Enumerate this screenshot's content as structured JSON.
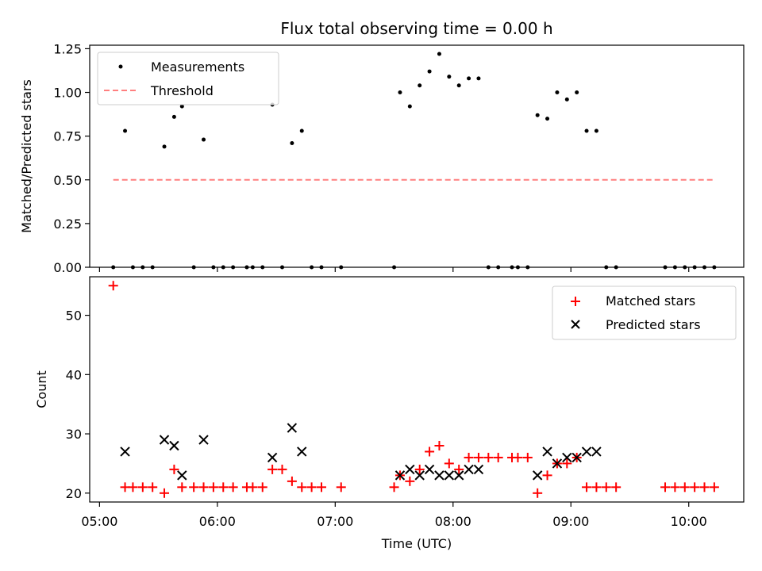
{
  "chart_data": [
    {
      "type": "scatter",
      "title": "Flux total observing time = 0.00 h",
      "ylabel": "Matched/Predicted stars",
      "xlabel": "",
      "xlim": [
        "04:55",
        "10:28"
      ],
      "ylim": [
        0,
        1.27
      ],
      "yticks": [
        "0.00",
        "0.25",
        "0.50",
        "0.75",
        "1.00",
        "1.25"
      ],
      "ytick_values": [
        0,
        0.25,
        0.5,
        0.75,
        1.0,
        1.25
      ],
      "legend_position": "top-left",
      "series": [
        {
          "name": "Measurements",
          "color": "#000000",
          "marker": "dot",
          "points": [
            [
              "05:07",
              0
            ],
            [
              "05:13",
              0.78
            ],
            [
              "05:17",
              0
            ],
            [
              "05:22",
              0
            ],
            [
              "05:27",
              0
            ],
            [
              "05:33",
              0.69
            ],
            [
              "05:38",
              0.86
            ],
            [
              "05:42",
              0.92
            ],
            [
              "05:48",
              0
            ],
            [
              "05:53",
              0.73
            ],
            [
              "05:58",
              0
            ],
            [
              "06:03",
              0
            ],
            [
              "06:08",
              0
            ],
            [
              "06:15",
              0
            ],
            [
              "06:18",
              0
            ],
            [
              "06:23",
              0
            ],
            [
              "06:28",
              0.93
            ],
            [
              "06:33",
              0
            ],
            [
              "06:38",
              0.71
            ],
            [
              "06:43",
              0.78
            ],
            [
              "06:48",
              0
            ],
            [
              "06:53",
              0
            ],
            [
              "07:03",
              0
            ],
            [
              "07:30",
              0
            ],
            [
              "07:33",
              1.0
            ],
            [
              "07:38",
              0.92
            ],
            [
              "07:43",
              1.04
            ],
            [
              "07:48",
              1.12
            ],
            [
              "07:53",
              1.22
            ],
            [
              "07:58",
              1.09
            ],
            [
              "08:03",
              1.04
            ],
            [
              "08:08",
              1.08
            ],
            [
              "08:13",
              1.08
            ],
            [
              "08:18",
              0
            ],
            [
              "08:23",
              0
            ],
            [
              "08:30",
              0
            ],
            [
              "08:33",
              0
            ],
            [
              "08:38",
              0
            ],
            [
              "08:43",
              0.87
            ],
            [
              "08:48",
              0.85
            ],
            [
              "08:53",
              1.0
            ],
            [
              "08:58",
              0.96
            ],
            [
              "09:03",
              1.0
            ],
            [
              "09:08",
              0.78
            ],
            [
              "09:13",
              0.78
            ],
            [
              "09:18",
              0
            ],
            [
              "09:23",
              0
            ],
            [
              "09:48",
              0
            ],
            [
              "09:53",
              0
            ],
            [
              "09:58",
              0
            ],
            [
              "10:03",
              0
            ],
            [
              "10:08",
              0
            ],
            [
              "10:13",
              0
            ]
          ]
        },
        {
          "name": "Threshold",
          "color": "#ff7f7f",
          "marker": "dashed-line",
          "points": [
            [
              "05:07",
              0.5
            ],
            [
              "10:13",
              0.5
            ]
          ]
        }
      ]
    },
    {
      "type": "scatter",
      "title": "",
      "ylabel": "Count",
      "xlabel": "Time (UTC)",
      "xlim": [
        "04:55",
        "10:28"
      ],
      "ylim": [
        18.5,
        56.5
      ],
      "yticks": [
        "20",
        "30",
        "40",
        "50"
      ],
      "ytick_values": [
        20,
        30,
        40,
        50
      ],
      "xticks": [
        "05:00",
        "06:00",
        "07:00",
        "08:00",
        "09:00",
        "10:00"
      ],
      "legend_position": "top-right",
      "series": [
        {
          "name": "Matched stars",
          "color": "#ff0000",
          "marker": "plus",
          "points": [
            [
              "05:07",
              55
            ],
            [
              "05:13",
              21
            ],
            [
              "05:17",
              21
            ],
            [
              "05:22",
              21
            ],
            [
              "05:27",
              21
            ],
            [
              "05:33",
              20
            ],
            [
              "05:38",
              24
            ],
            [
              "05:42",
              21
            ],
            [
              "05:48",
              21
            ],
            [
              "05:53",
              21
            ],
            [
              "05:58",
              21
            ],
            [
              "06:03",
              21
            ],
            [
              "06:08",
              21
            ],
            [
              "06:15",
              21
            ],
            [
              "06:18",
              21
            ],
            [
              "06:23",
              21
            ],
            [
              "06:28",
              24
            ],
            [
              "06:33",
              24
            ],
            [
              "06:38",
              22
            ],
            [
              "06:43",
              21
            ],
            [
              "06:48",
              21
            ],
            [
              "06:53",
              21
            ],
            [
              "07:03",
              21
            ],
            [
              "07:30",
              21
            ],
            [
              "07:33",
              23
            ],
            [
              "07:38",
              22
            ],
            [
              "07:43",
              24
            ],
            [
              "07:48",
              27
            ],
            [
              "07:53",
              28
            ],
            [
              "07:58",
              25
            ],
            [
              "08:03",
              24
            ],
            [
              "08:08",
              26
            ],
            [
              "08:13",
              26
            ],
            [
              "08:18",
              26
            ],
            [
              "08:23",
              26
            ],
            [
              "08:30",
              26
            ],
            [
              "08:33",
              26
            ],
            [
              "08:38",
              26
            ],
            [
              "08:43",
              20
            ],
            [
              "08:48",
              23
            ],
            [
              "08:53",
              25
            ],
            [
              "08:58",
              25
            ],
            [
              "09:03",
              26
            ],
            [
              "09:08",
              21
            ],
            [
              "09:13",
              21
            ],
            [
              "09:18",
              21
            ],
            [
              "09:23",
              21
            ],
            [
              "09:48",
              21
            ],
            [
              "09:53",
              21
            ],
            [
              "09:58",
              21
            ],
            [
              "10:03",
              21
            ],
            [
              "10:08",
              21
            ],
            [
              "10:13",
              21
            ]
          ]
        },
        {
          "name": "Predicted stars",
          "color": "#000000",
          "marker": "x",
          "points": [
            [
              "05:13",
              27
            ],
            [
              "05:33",
              29
            ],
            [
              "05:38",
              28
            ],
            [
              "05:42",
              23
            ],
            [
              "05:53",
              29
            ],
            [
              "06:28",
              26
            ],
            [
              "06:38",
              31
            ],
            [
              "06:43",
              27
            ],
            [
              "07:33",
              23
            ],
            [
              "07:38",
              24
            ],
            [
              "07:43",
              23
            ],
            [
              "07:48",
              24
            ],
            [
              "07:53",
              23
            ],
            [
              "07:58",
              23
            ],
            [
              "08:03",
              23
            ],
            [
              "08:08",
              24
            ],
            [
              "08:13",
              24
            ],
            [
              "08:43",
              23
            ],
            [
              "08:48",
              27
            ],
            [
              "08:53",
              25
            ],
            [
              "08:58",
              26
            ],
            [
              "09:03",
              26
            ],
            [
              "09:08",
              27
            ],
            [
              "09:13",
              27
            ]
          ]
        }
      ]
    }
  ]
}
